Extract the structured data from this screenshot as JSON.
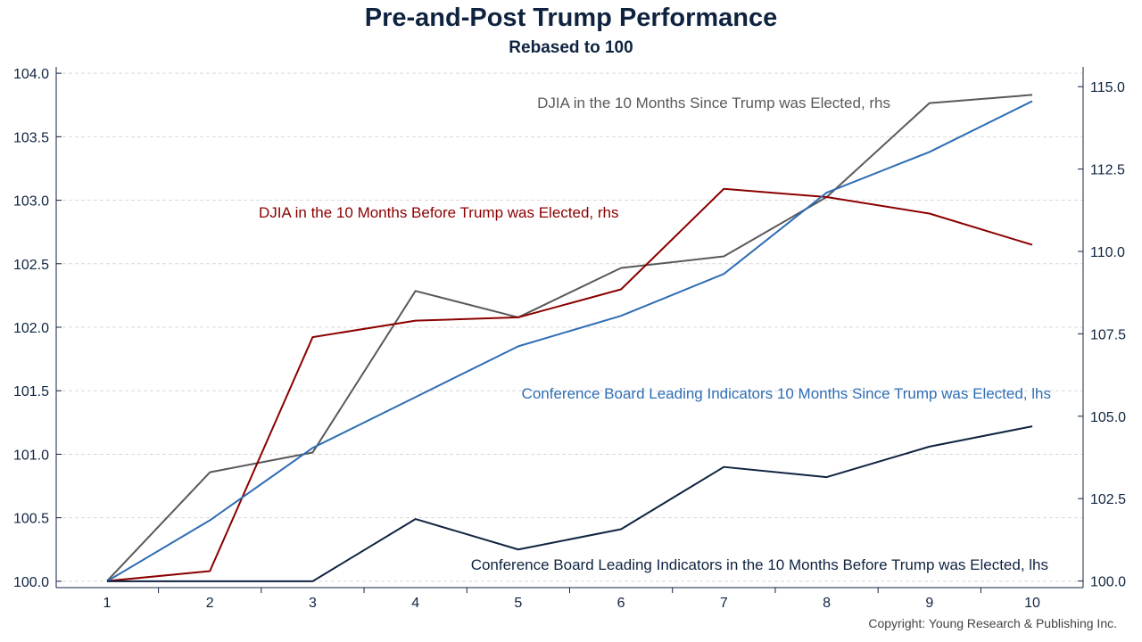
{
  "title": "Pre-and-Post Trump Performance",
  "subtitle": "Rebased to 100",
  "copyright": "Copyright: Young Research & Publishing Inc.",
  "chart_data": {
    "type": "line",
    "x": [
      1,
      2,
      3,
      4,
      5,
      6,
      7,
      8,
      9,
      10
    ],
    "y_left": {
      "lim": [
        99.95,
        104.05
      ],
      "ticks": [
        "100.0",
        "100.5",
        "101.0",
        "101.5",
        "102.0",
        "102.5",
        "103.0",
        "103.5",
        "104.0"
      ]
    },
    "y_right": {
      "lim": [
        99.8,
        115.6
      ],
      "ticks": [
        "100.0",
        "102.5",
        "105.0",
        "107.5",
        "110.0",
        "112.5",
        "115.0"
      ]
    },
    "grid": true,
    "series": [
      {
        "name": "DJIA in the 10 Months Since Trump was Elected, rhs",
        "axis": "right",
        "color": "#595959",
        "values": [
          100.0,
          103.3,
          103.9,
          108.8,
          108.0,
          109.5,
          109.85,
          111.65,
          114.5,
          114.75
        ]
      },
      {
        "name": "DJIA in the 10 Months Before Trump was Elected, rhs",
        "axis": "right",
        "color": "#8b0000",
        "values": [
          100.0,
          100.3,
          107.4,
          107.9,
          108.0,
          108.85,
          111.9,
          111.65,
          111.15,
          110.2
        ]
      },
      {
        "name": "Conference Board Leading Indicators 10 Months Since Trump was Elected, lhs",
        "axis": "left",
        "color": "#2e6db4",
        "values": [
          100.0,
          100.48,
          101.05,
          101.45,
          101.85,
          102.09,
          102.42,
          103.06,
          103.38,
          103.78
        ]
      },
      {
        "name": "Conference Board Leading Indicators in the 10 Months Before Trump was Elected, lhs",
        "axis": "left",
        "color": "#0f2340",
        "values": [
          100.0,
          100.0,
          100.0,
          100.49,
          100.25,
          100.41,
          100.9,
          100.82,
          101.06,
          101.22
        ]
      }
    ]
  }
}
